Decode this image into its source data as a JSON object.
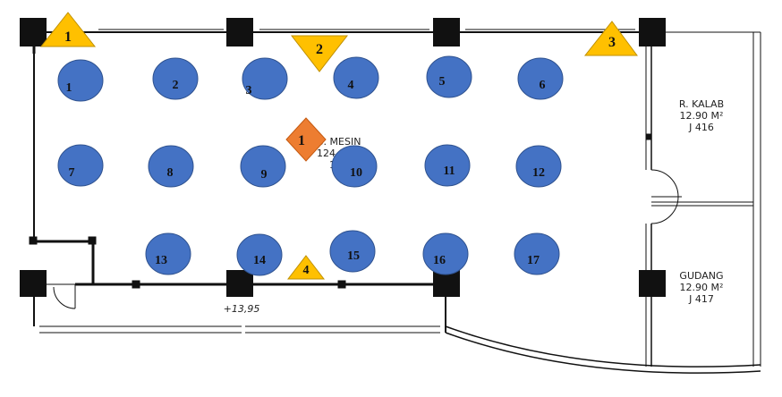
{
  "room_main": {
    "name_partial": "B. MESIN",
    "area_partial": "124",
    "code_partial": "1"
  },
  "room_kalab": {
    "name": "R. KALAB",
    "area": "12.90 M²",
    "code": "J 416"
  },
  "room_gudang": {
    "name": "GUDANG",
    "area": "12.90 M²",
    "code": "J 417"
  },
  "elevation": "+13,95",
  "circles": [
    "1",
    "2",
    "3",
    "4",
    "5",
    "6",
    "7",
    "8",
    "9",
    "10",
    "11",
    "12",
    "13",
    "14",
    "15",
    "16",
    "17"
  ],
  "triangles": [
    "1",
    "2",
    "3",
    "4"
  ],
  "diamond": "1",
  "colors": {
    "circle_fill": "#4472C4",
    "circle_stroke": "#2F528F",
    "triangle_fill": "#FFC000",
    "triangle_stroke": "#BF9000",
    "diamond_fill": "#ED7D31",
    "wall": "#111111"
  }
}
